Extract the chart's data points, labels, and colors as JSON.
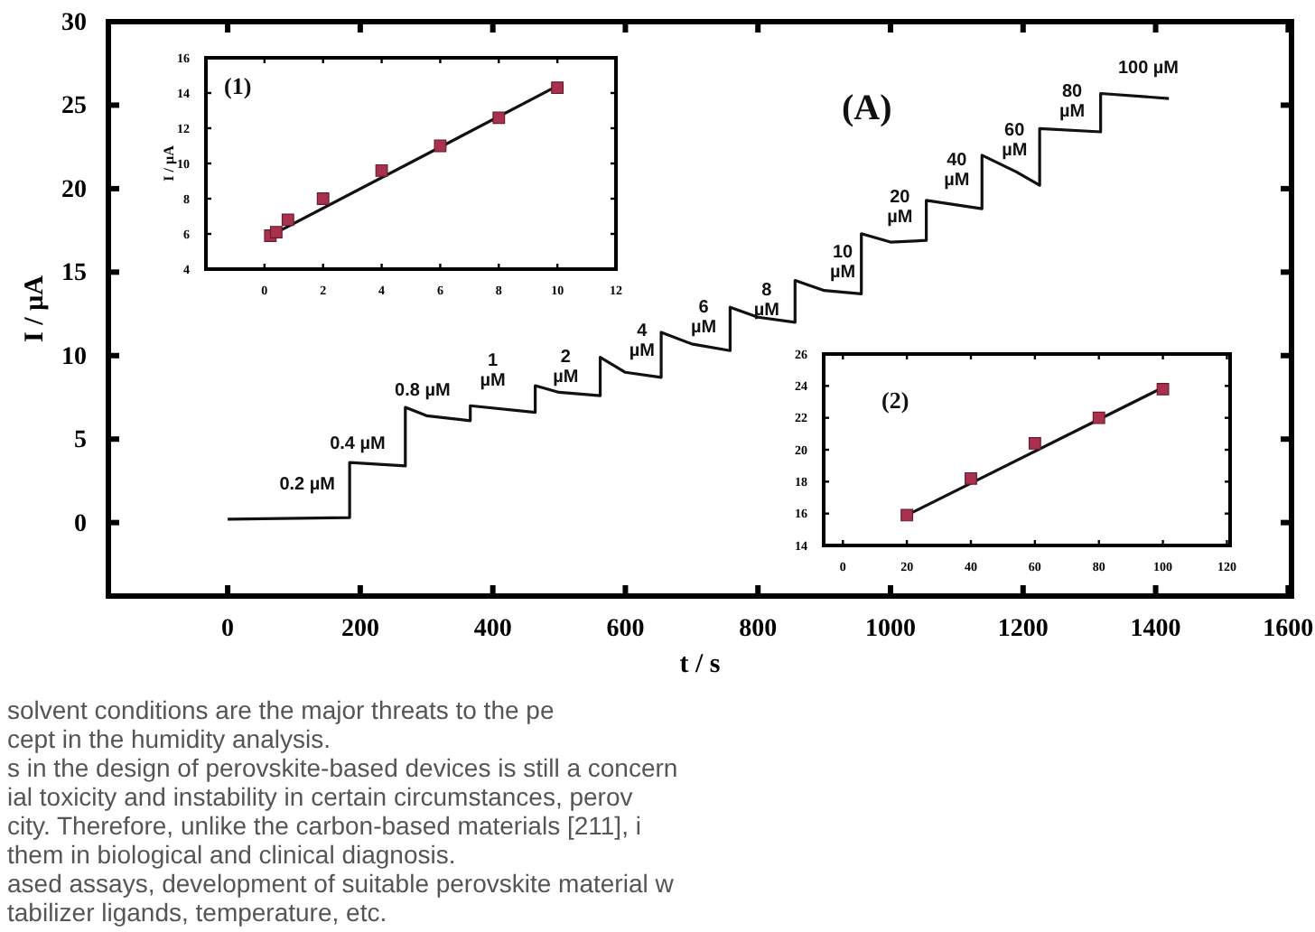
{
  "chart_data": [
    {
      "type": "line",
      "xlabel": "t / s",
      "ylabel": "I / µA",
      "xlim": [
        -180,
        1605
      ],
      "ylim": [
        -4.4,
        30
      ],
      "xticks": [
        0,
        200,
        400,
        600,
        800,
        1000,
        1200,
        1400,
        1600
      ],
      "yticks": [
        0,
        5,
        10,
        15,
        20,
        25,
        30
      ],
      "marker": "none",
      "line_style": "solid",
      "series": [
        {
          "color": "#111111",
          "x": [
            0,
            184,
            184,
            268,
            268,
            300,
            366,
            366,
            464,
            464,
            500,
            562,
            562,
            600,
            654,
            654,
            700,
            758,
            758,
            800,
            856,
            856,
            900,
            956,
            956,
            1000,
            1054,
            1054,
            1138,
            1138,
            1190,
            1225,
            1225,
            1317,
            1317,
            1420
          ],
          "values": [
            0.2,
            0.3,
            3.6,
            3.4,
            6.9,
            6.4,
            6.1,
            7.0,
            6.6,
            8.2,
            7.8,
            7.6,
            9.9,
            9.0,
            8.7,
            11.4,
            10.7,
            10.3,
            12.9,
            12.3,
            12.0,
            14.5,
            13.9,
            13.7,
            17.3,
            16.8,
            16.9,
            19.3,
            18.8,
            22.0,
            21.0,
            20.2,
            23.6,
            23.4,
            25.7,
            25.4
          ]
        }
      ],
      "annotations": [
        "0.2 µM",
        "0.4 µM",
        "0.8 µM",
        "1 µM",
        "2 µM",
        "4 µM",
        "6 µM",
        "8 µM",
        "10 µM",
        "20 µM",
        "40 µM",
        "60 µM",
        "80 µM",
        "100 µM",
        "(A)",
        "solvent conditions are the major threats to the pe",
        "cept in the humidity analysis.",
        "s in the design of perovskite-based devices is still a concern",
        "ial toxicity and instability in certain circumstances, perov",
        "city. Therefore, unlike the carbon-based materials [211], i",
        "them in biological and clinical diagnosis.",
        "ased assays, development of suitable perovskite material w",
        "tabilizer ligands, temperature, etc."
      ]
    },
    {
      "type": "scatter",
      "ylabel": "I / µA",
      "xlim": [
        -2,
        12
      ],
      "ylim": [
        4,
        16
      ],
      "xticks": [
        0,
        2,
        4,
        6,
        8,
        10,
        12
      ],
      "yticks": [
        4,
        6,
        8,
        10,
        12,
        14,
        16
      ],
      "annotations": [
        "(1)"
      ],
      "series": [
        {
          "type": "line",
          "marker": "none",
          "color": "#111111",
          "x": [
            0.2,
            10
          ],
          "values": [
            5.9,
            14.4
          ]
        },
        {
          "marker": "square",
          "color": "#a8324e",
          "x": [
            0.2,
            0.4,
            0.8,
            2,
            4,
            6,
            8,
            10
          ],
          "values": [
            5.9,
            6.1,
            6.8,
            8.0,
            9.6,
            11.0,
            12.6,
            14.3
          ]
        }
      ]
    },
    {
      "type": "scatter",
      "xlim": [
        -6,
        121
      ],
      "ylim": [
        14,
        26
      ],
      "xticks": [
        0,
        20,
        40,
        60,
        80,
        100,
        120
      ],
      "yticks": [
        14,
        16,
        18,
        20,
        22,
        24,
        26
      ],
      "annotations": [
        "(2)"
      ],
      "series": [
        {
          "type": "line",
          "marker": "none",
          "color": "#111111",
          "x": [
            20,
            100
          ],
          "values": [
            15.9,
            23.9
          ]
        },
        {
          "marker": "square",
          "color": "#a8324e",
          "x": [
            20,
            40,
            60,
            80,
            100
          ],
          "values": [
            15.9,
            18.2,
            20.4,
            22.0,
            23.8
          ]
        }
      ]
    }
  ]
}
